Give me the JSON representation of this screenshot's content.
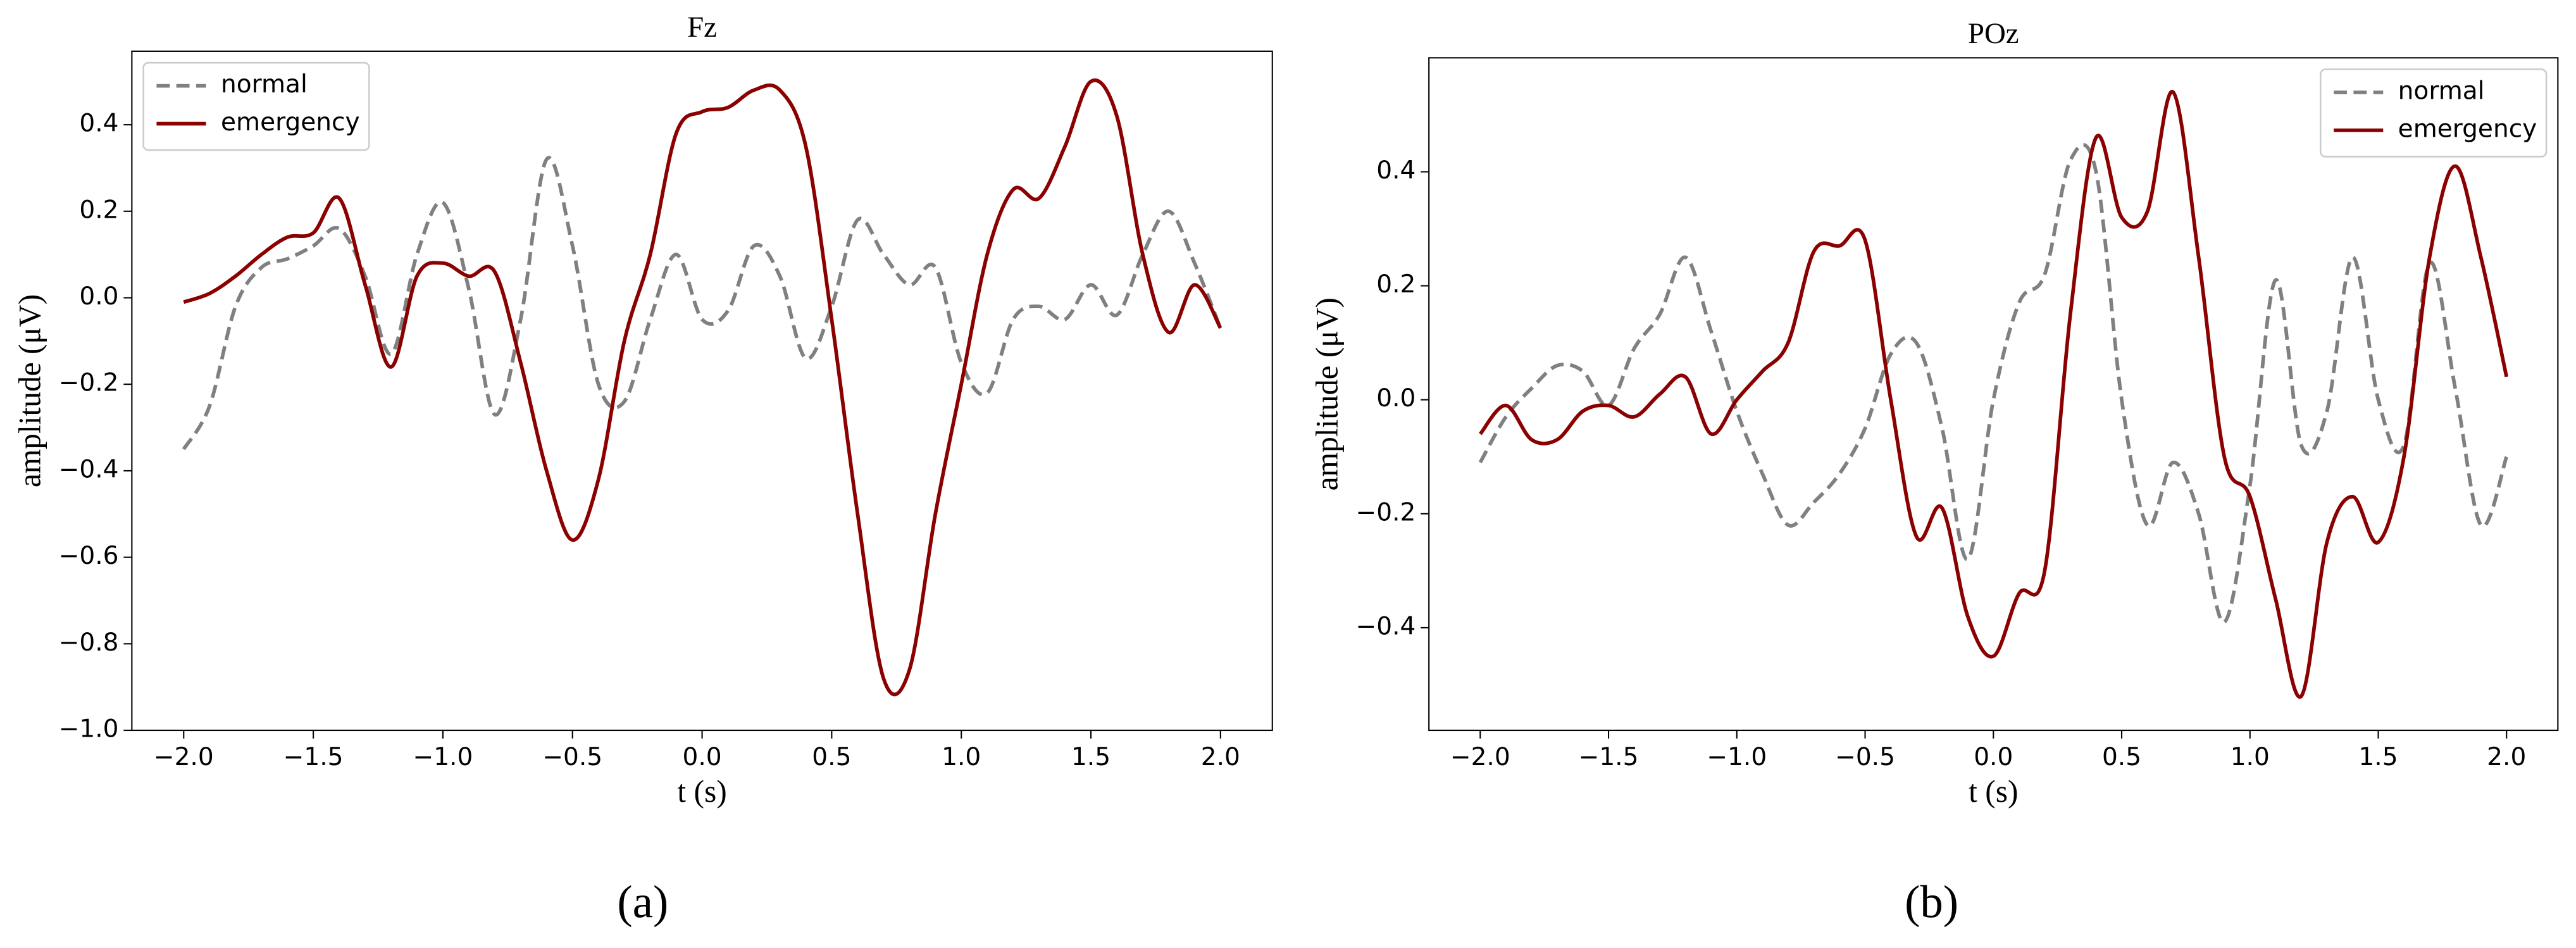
{
  "chart_data": [
    {
      "type": "line",
      "title": "Fz",
      "xlabel": "t (s)",
      "ylabel": "amplitude (μV)",
      "caption": "(a)",
      "x": [
        -2.0,
        -1.9,
        -1.8,
        -1.7,
        -1.6,
        -1.5,
        -1.4,
        -1.3,
        -1.2,
        -1.1,
        -1.0,
        -0.9,
        -0.8,
        -0.7,
        -0.6,
        -0.5,
        -0.4,
        -0.3,
        -0.2,
        -0.1,
        0.0,
        0.1,
        0.2,
        0.3,
        0.4,
        0.5,
        0.6,
        0.7,
        0.8,
        0.9,
        1.0,
        1.1,
        1.2,
        1.3,
        1.4,
        1.5,
        1.6,
        1.7,
        1.8,
        1.9,
        2.0
      ],
      "series": [
        {
          "name": "normal",
          "color": "#808080",
          "dashed": true,
          "values": [
            -0.35,
            -0.25,
            -0.02,
            0.07,
            0.09,
            0.12,
            0.16,
            0.05,
            -0.13,
            0.1,
            0.22,
            0.02,
            -0.27,
            -0.05,
            0.32,
            0.12,
            -0.2,
            -0.24,
            -0.05,
            0.1,
            -0.05,
            -0.03,
            0.12,
            0.05,
            -0.14,
            -0.02,
            0.18,
            0.1,
            0.03,
            0.07,
            -0.15,
            -0.22,
            -0.05,
            -0.02,
            -0.05,
            0.03,
            -0.04,
            0.1,
            0.2,
            0.08,
            -0.07
          ]
        },
        {
          "name": "emergency",
          "color": "#8b0000",
          "dashed": false,
          "values": [
            -0.01,
            0.01,
            0.05,
            0.1,
            0.14,
            0.15,
            0.23,
            0.03,
            -0.16,
            0.05,
            0.08,
            0.05,
            0.06,
            -0.15,
            -0.4,
            -0.56,
            -0.42,
            -0.1,
            0.1,
            0.38,
            0.43,
            0.44,
            0.48,
            0.48,
            0.35,
            -0.05,
            -0.5,
            -0.88,
            -0.86,
            -0.5,
            -0.2,
            0.1,
            0.25,
            0.23,
            0.35,
            0.5,
            0.42,
            0.1,
            -0.08,
            0.03,
            -0.07
          ]
        }
      ],
      "xlim": [
        -2.2,
        2.2
      ],
      "xticks": [
        {
          "value": -2.0,
          "label": "−2.0"
        },
        {
          "value": -1.5,
          "label": "−1.5"
        },
        {
          "value": -1.0,
          "label": "−1.0"
        },
        {
          "value": -0.5,
          "label": "−0.5"
        },
        {
          "value": 0,
          "label": "0.0"
        },
        0.5,
        {
          "value": 1,
          "label": "1.0"
        },
        1.5,
        {
          "value": 2,
          "label": "2.0"
        }
      ],
      "ylim": [
        -1.0,
        0.57
      ],
      "yticks": [
        {
          "value": -1.0,
          "label": "−1.0"
        },
        {
          "value": -0.8,
          "label": "−0.8"
        },
        {
          "value": -0.6,
          "label": "−0.6"
        },
        {
          "value": -0.4,
          "label": "−0.4"
        },
        {
          "value": -0.2,
          "label": "−0.2"
        },
        {
          "value": 0,
          "label": "0.0"
        },
        0.2,
        0.4
      ],
      "legend": "upper left"
    },
    {
      "type": "line",
      "title": "POz",
      "xlabel": "t (s)",
      "ylabel": "amplitude (μV)",
      "caption": "(b)",
      "x": [
        -2.0,
        -1.9,
        -1.8,
        -1.7,
        -1.6,
        -1.5,
        -1.4,
        -1.3,
        -1.2,
        -1.1,
        -1.0,
        -0.9,
        -0.8,
        -0.7,
        -0.6,
        -0.5,
        -0.4,
        -0.3,
        -0.2,
        -0.1,
        0.0,
        0.1,
        0.2,
        0.3,
        0.4,
        0.5,
        0.6,
        0.7,
        0.8,
        0.9,
        1.0,
        1.1,
        1.2,
        1.3,
        1.4,
        1.5,
        1.6,
        1.7,
        1.8,
        1.9,
        2.0
      ],
      "series": [
        {
          "name": "normal",
          "color": "#808080",
          "dashed": true,
          "values": [
            -0.11,
            -0.03,
            0.02,
            0.06,
            0.05,
            -0.01,
            0.09,
            0.15,
            0.25,
            0.12,
            -0.02,
            -0.13,
            -0.22,
            -0.18,
            -0.13,
            -0.05,
            0.08,
            0.1,
            -0.05,
            -0.28,
            0.0,
            0.17,
            0.22,
            0.42,
            0.4,
            0.0,
            -0.22,
            -0.11,
            -0.2,
            -0.39,
            -0.15,
            0.21,
            -0.08,
            -0.02,
            0.25,
            0.0,
            -0.08,
            0.24,
            0.02,
            -0.22,
            -0.1
          ]
        },
        {
          "name": "emergency",
          "color": "#8b0000",
          "dashed": false,
          "values": [
            -0.06,
            -0.01,
            -0.07,
            -0.07,
            -0.02,
            -0.01,
            -0.03,
            0.01,
            0.04,
            -0.06,
            0.0,
            0.05,
            0.1,
            0.26,
            0.27,
            0.28,
            0.0,
            -0.24,
            -0.19,
            -0.38,
            -0.45,
            -0.34,
            -0.3,
            0.15,
            0.46,
            0.32,
            0.33,
            0.54,
            0.25,
            -0.1,
            -0.17,
            -0.35,
            -0.52,
            -0.25,
            -0.17,
            -0.25,
            -0.1,
            0.25,
            0.41,
            0.25,
            0.04
          ]
        }
      ],
      "xlim": [
        -2.2,
        2.2
      ],
      "xticks": [
        {
          "value": -2.0,
          "label": "−2.0"
        },
        {
          "value": -1.5,
          "label": "−1.5"
        },
        {
          "value": -1.0,
          "label": "−1.0"
        },
        {
          "value": -0.5,
          "label": "−0.5"
        },
        {
          "value": 0,
          "label": "0.0"
        },
        0.5,
        {
          "value": 1,
          "label": "1.0"
        },
        1.5,
        {
          "value": 2,
          "label": "2.0"
        }
      ],
      "ylim": [
        -0.58,
        0.6
      ],
      "yticks": [
        {
          "value": -0.4,
          "label": "−0.4"
        },
        {
          "value": -0.2,
          "label": "−0.2"
        },
        {
          "value": 0,
          "label": "0.0"
        },
        0.2,
        0.4
      ],
      "legend": "upper right"
    }
  ]
}
